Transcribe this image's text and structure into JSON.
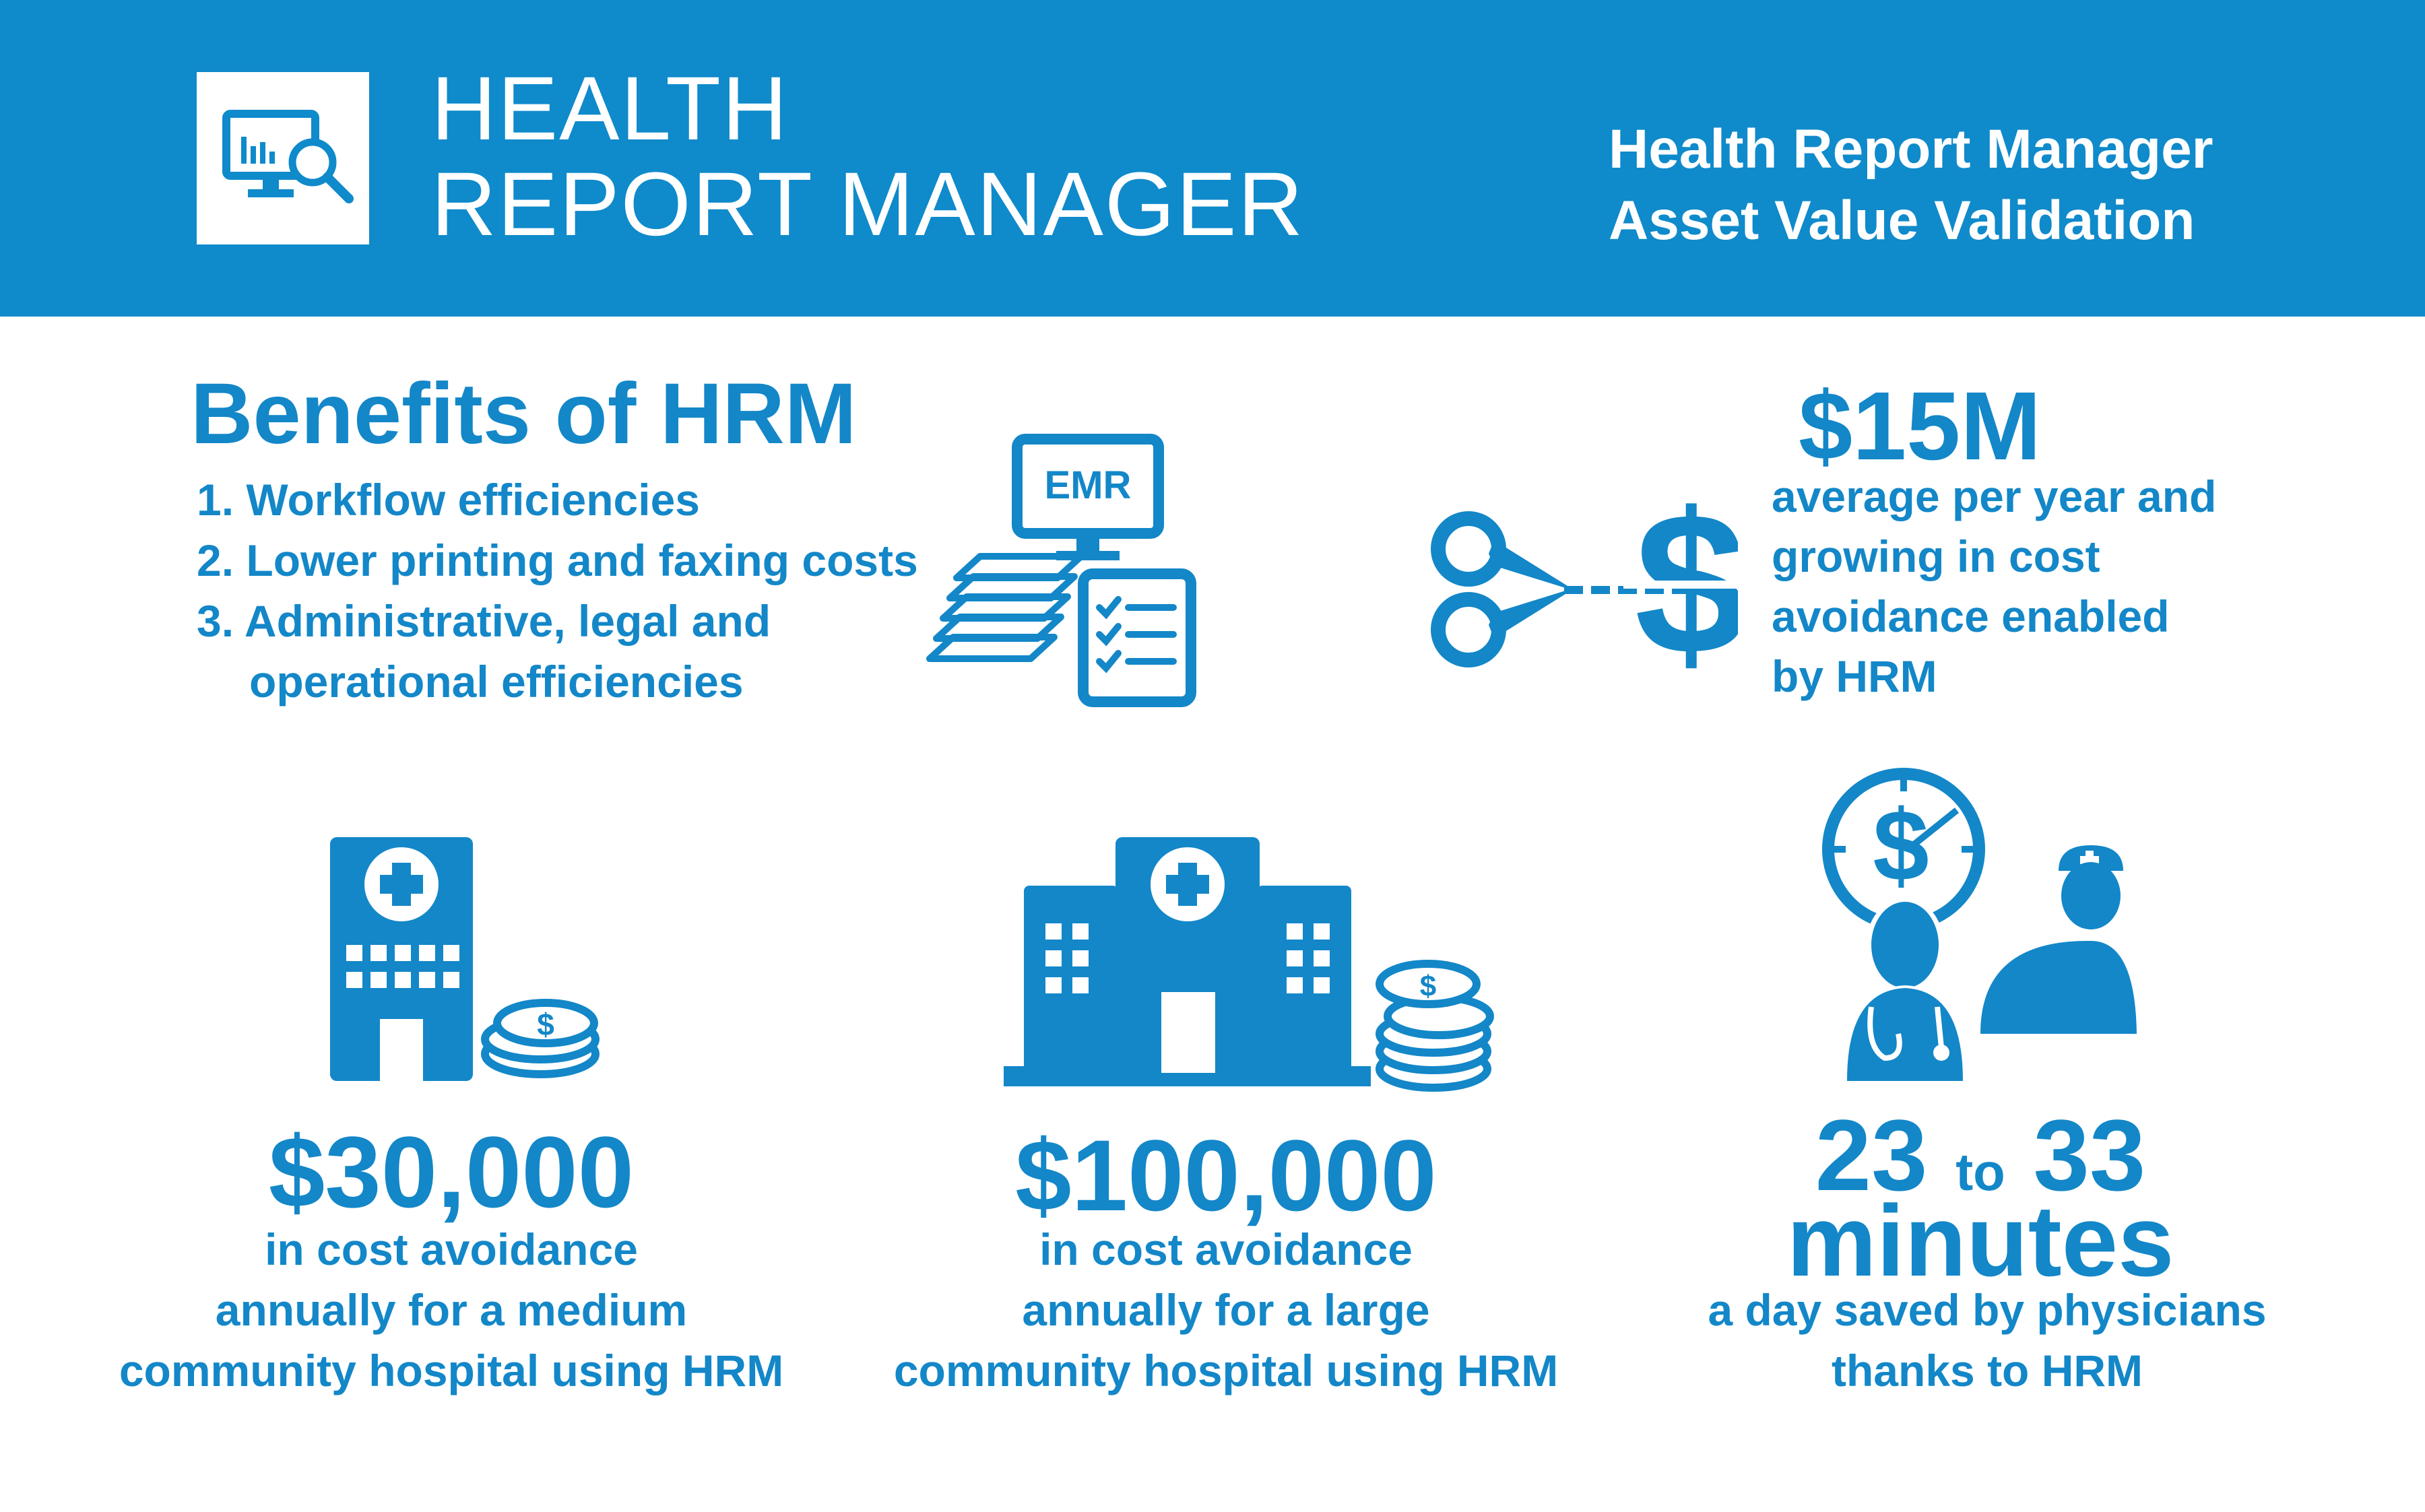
{
  "header": {
    "brand_line1": "HEALTH",
    "brand_line2": "REPORT MANAGER",
    "subtitle_line1": "Health Report Manager",
    "subtitle_line2": "Asset Value Validation",
    "logo_icon": "monitor-chart-magnifier-icon"
  },
  "benefits": {
    "title": "Benefits of HRM",
    "items": [
      "1.  Workflow efficiencies",
      "2. Lower printing and faxing costs",
      "3. Administrative, legal and",
      "operational efficiencies"
    ],
    "icon_label": "EMR"
  },
  "cost_15m": {
    "value": "$15M",
    "lines": [
      "average per year and",
      "growing in cost",
      "avoidance enabled",
      "by HRM"
    ]
  },
  "medium_hospital": {
    "value": "$30,000",
    "lines": [
      "in cost avoidance",
      "annually for a medium",
      "community hospital using HRM"
    ]
  },
  "large_hospital": {
    "value": "$100,000",
    "lines": [
      "in cost avoidance",
      "annually for a large",
      "community hospital using HRM"
    ]
  },
  "time_saved": {
    "from": "23",
    "to_word": "to",
    "to": "33",
    "unit": "minutes",
    "lines": [
      "a day saved by physicians",
      "thanks to HRM"
    ]
  },
  "colors": {
    "brand_blue": "#0f8acb",
    "text_blue": "#1387c8",
    "white": "#ffffff"
  }
}
